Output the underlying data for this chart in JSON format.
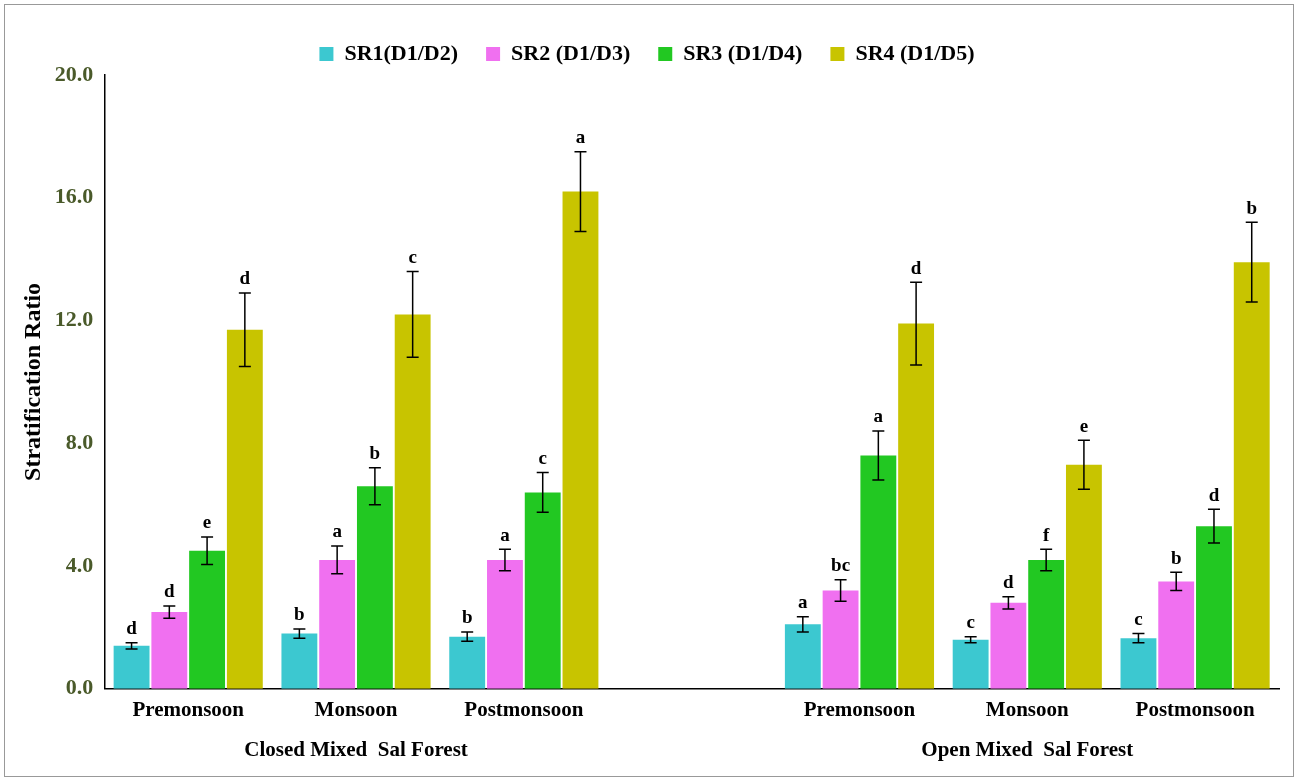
{
  "chart_data": {
    "type": "bar",
    "ylabel": "Stratification Ratio",
    "categories": [
      "Premonsoon",
      "Monsoon",
      "Postmonsoon",
      null,
      "Premonsoon",
      "Monsoon",
      "Postmonsoon"
    ],
    "series": [
      {
        "name": "SR1(D1/D2)",
        "color": "#3cc8d0",
        "values": [
          1.4,
          1.8,
          1.7,
          null,
          2.1,
          1.6,
          1.65
        ],
        "errors": [
          0.1,
          0.15,
          0.15,
          null,
          0.25,
          0.1,
          0.15
        ],
        "value_labels": [
          "d",
          "b",
          "b",
          null,
          "a",
          "c",
          "c"
        ]
      },
      {
        "name": "SR2 (D1/D3)",
        "color": "#f070f0",
        "values": [
          2.5,
          4.2,
          4.2,
          null,
          3.2,
          2.8,
          3.5
        ],
        "errors": [
          0.2,
          0.45,
          0.35,
          null,
          0.35,
          0.2,
          0.3
        ],
        "value_labels": [
          "d",
          "a",
          "a",
          null,
          "bc",
          "d",
          "b"
        ]
      },
      {
        "name": "SR3 (D1/D4)",
        "color": "#22c822",
        "values": [
          4.5,
          6.6,
          6.4,
          null,
          7.6,
          4.2,
          5.3
        ],
        "errors": [
          0.45,
          0.6,
          0.65,
          null,
          0.8,
          0.35,
          0.55
        ],
        "value_labels": [
          "e",
          "b",
          "c",
          null,
          "a",
          "f",
          "d"
        ]
      },
      {
        "name": "SR4 (D1/D5)",
        "color": "#c8c400",
        "values": [
          11.7,
          12.2,
          16.2,
          null,
          11.9,
          7.3,
          13.9
        ],
        "errors": [
          1.2,
          1.4,
          1.3,
          null,
          1.35,
          0.8,
          1.3
        ],
        "value_labels": [
          "d",
          "c",
          "a",
          null,
          "d",
          "e",
          "b"
        ]
      }
    ],
    "ylim": [
      0,
      20
    ],
    "yticks": [
      {
        "value": 0,
        "label": "0.0"
      },
      {
        "value": 4,
        "label": "4.0"
      },
      {
        "value": 8,
        "label": "8.0"
      },
      {
        "value": 12,
        "label": "12.0"
      },
      {
        "value": 16,
        "label": "16.0"
      },
      {
        "value": 20,
        "label": "20.0"
      }
    ],
    "grid": false,
    "legend": "top",
    "annotations": [
      "Closed Mixed  Sal Forest",
      "Open Mixed  Sal Forest"
    ]
  }
}
